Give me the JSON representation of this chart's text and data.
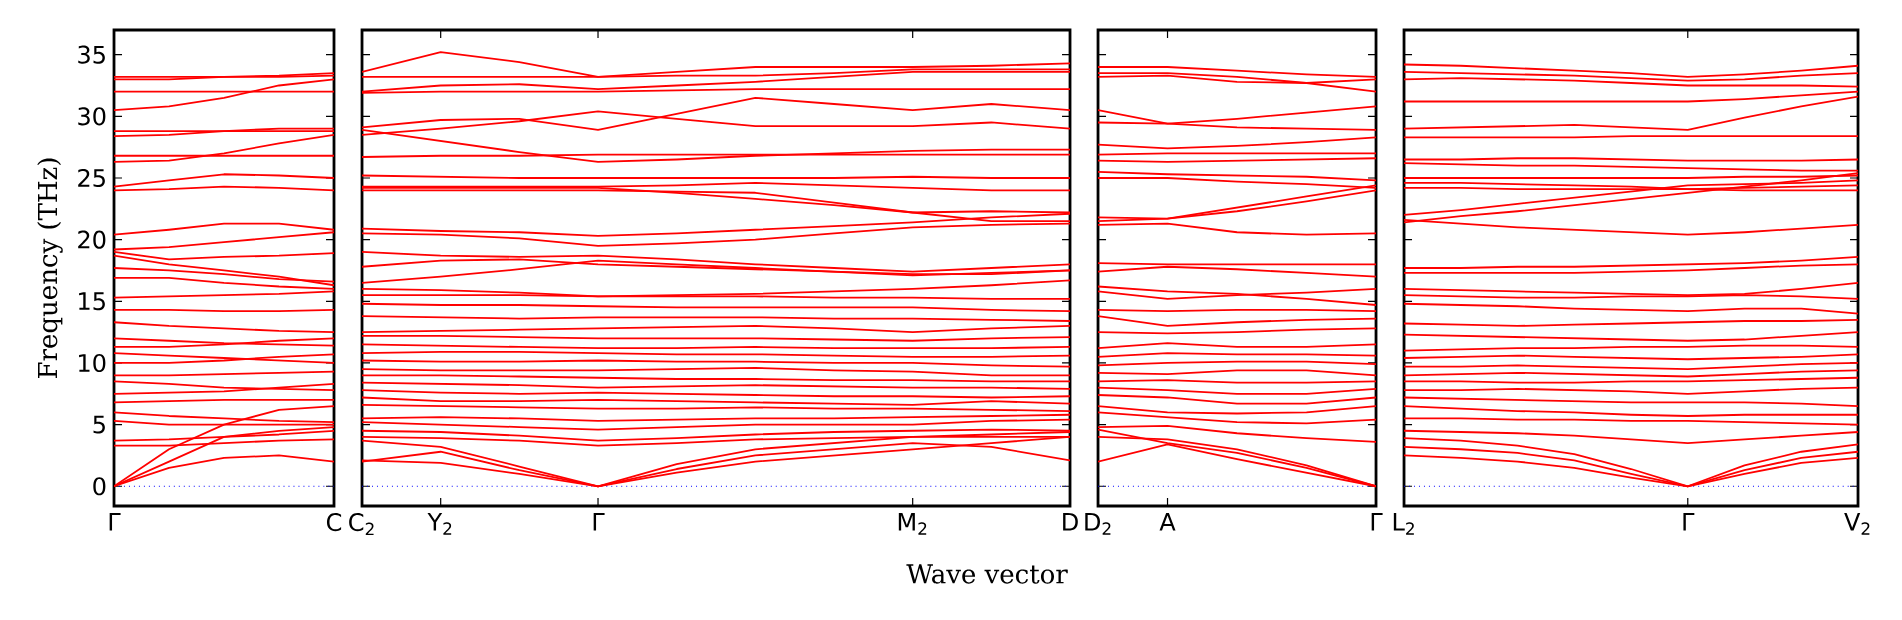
{
  "chart_data": [
    {
      "type": "line",
      "ylabel": "Frequency (THz)",
      "ylim": [
        -1.6,
        37
      ],
      "yticks": [
        0,
        5,
        10,
        15,
        20,
        25,
        30,
        35
      ],
      "categories": [
        "Γ",
        null,
        null,
        null,
        "C"
      ],
      "ref_lines": [
        {
          "axis": "y",
          "value": 0,
          "color": "#0000ff",
          "line_style": "dotted"
        }
      ],
      "series": [
        {
          "color": "#ff0000",
          "values": [
            0,
            1.5,
            2.3,
            2.5,
            2.0
          ]
        },
        {
          "color": "#ff0000",
          "values": [
            0,
            2.0,
            4.0,
            4.5,
            4.8
          ]
        },
        {
          "color": "#ff0000",
          "values": [
            0,
            3.0,
            5.0,
            6.2,
            6.5
          ]
        },
        {
          "color": "#ff0000",
          "values": [
            3.3,
            3.3,
            3.5,
            3.7,
            3.8
          ]
        },
        {
          "color": "#ff0000",
          "values": [
            3.7,
            3.8,
            4.0,
            4.2,
            4.5
          ]
        },
        {
          "color": "#ff0000",
          "values": [
            5.3,
            5.0,
            5.0,
            5.0,
            5.0
          ]
        },
        {
          "color": "#ff0000",
          "values": [
            6.0,
            5.7,
            5.5,
            5.3,
            5.2
          ]
        },
        {
          "color": "#ff0000",
          "values": [
            6.8,
            6.9,
            7.0,
            7.0,
            7.0
          ]
        },
        {
          "color": "#ff0000",
          "values": [
            7.5,
            7.6,
            7.7,
            8.0,
            8.3
          ]
        },
        {
          "color": "#ff0000",
          "values": [
            8.5,
            8.3,
            8.0,
            7.9,
            7.8
          ]
        },
        {
          "color": "#ff0000",
          "values": [
            9.0,
            9.0,
            9.1,
            9.2,
            9.3
          ]
        },
        {
          "color": "#ff0000",
          "values": [
            10.0,
            10.0,
            10.2,
            10.5,
            10.7
          ]
        },
        {
          "color": "#ff0000",
          "values": [
            10.8,
            10.6,
            10.4,
            10.2,
            10.0
          ]
        },
        {
          "color": "#ff0000",
          "values": [
            11.3,
            11.3,
            11.5,
            11.8,
            12.0
          ]
        },
        {
          "color": "#ff0000",
          "values": [
            12.0,
            11.8,
            11.6,
            11.5,
            11.4
          ]
        },
        {
          "color": "#ff0000",
          "values": [
            13.3,
            13.0,
            12.8,
            12.6,
            12.5
          ]
        },
        {
          "color": "#ff0000",
          "values": [
            14.3,
            14.3,
            14.2,
            14.2,
            14.3
          ]
        },
        {
          "color": "#ff0000",
          "values": [
            15.3,
            15.4,
            15.5,
            15.6,
            15.8
          ]
        },
        {
          "color": "#ff0000",
          "values": [
            16.9,
            16.9,
            16.5,
            16.2,
            16.0
          ]
        },
        {
          "color": "#ff0000",
          "values": [
            17.7,
            17.5,
            17.2,
            16.8,
            16.6
          ]
        },
        {
          "color": "#ff0000",
          "values": [
            18.7,
            18.0,
            17.5,
            17.0,
            16.3
          ]
        },
        {
          "color": "#ff0000",
          "values": [
            19.0,
            18.4,
            18.6,
            18.7,
            18.9
          ]
        },
        {
          "color": "#ff0000",
          "values": [
            20.4,
            20.8,
            21.3,
            21.3,
            20.8
          ]
        },
        {
          "color": "#ff0000",
          "values": [
            19.2,
            19.4,
            19.8,
            20.2,
            20.6
          ]
        },
        {
          "color": "#ff0000",
          "values": [
            24.0,
            24.1,
            24.3,
            24.2,
            24.0
          ]
        },
        {
          "color": "#ff0000",
          "values": [
            24.3,
            24.8,
            25.3,
            25.2,
            25.0
          ]
        },
        {
          "color": "#ff0000",
          "values": [
            26.8,
            26.8,
            26.8,
            26.8,
            26.8
          ]
        },
        {
          "color": "#ff0000",
          "values": [
            26.3,
            26.4,
            27.0,
            27.8,
            28.5
          ]
        },
        {
          "color": "#ff0000",
          "values": [
            28.4,
            28.5,
            28.8,
            29.0,
            29.0
          ]
        },
        {
          "color": "#ff0000",
          "values": [
            28.8,
            28.8,
            28.8,
            28.8,
            28.8
          ]
        },
        {
          "color": "#ff0000",
          "values": [
            30.5,
            30.8,
            31.5,
            32.5,
            33.0
          ]
        },
        {
          "color": "#ff0000",
          "values": [
            32.0,
            32.0,
            32.0,
            32.0,
            32.0
          ]
        },
        {
          "color": "#ff0000",
          "values": [
            33.0,
            33.0,
            33.2,
            33.3,
            33.5
          ]
        },
        {
          "color": "#ff0000",
          "values": [
            33.2,
            33.2,
            33.2,
            33.2,
            33.3
          ]
        }
      ]
    },
    {
      "type": "line",
      "xlabel": "Wave vector",
      "tick_labels": "x",
      "ylim": [
        -1.6,
        37
      ],
      "yticks": [
        0,
        5,
        10,
        15,
        20,
        25,
        30,
        35
      ],
      "categories": [
        "C$_{2}$",
        "Y$_{2}$",
        null,
        "Γ",
        null,
        null,
        null,
        "M$_{2}$",
        null,
        "D"
      ],
      "ref_lines": [
        {
          "axis": "y",
          "value": 0,
          "color": "#0000ff",
          "line_style": "dotted"
        }
      ],
      "series": [
        {
          "color": "#ff0000",
          "values": [
            33.6,
            35.2,
            34.4,
            33.2,
            33.6,
            34.0,
            34.0,
            34.0,
            34.1,
            34.3
          ]
        },
        {
          "color": "#ff0000",
          "values": [
            33.2,
            33.2,
            33.2,
            33.2,
            33.3,
            33.3,
            33.5,
            33.8,
            33.8,
            33.8
          ]
        },
        {
          "color": "#ff0000",
          "values": [
            32.0,
            32.5,
            32.6,
            32.2,
            32.5,
            32.8,
            33.2,
            33.6,
            33.6,
            33.6
          ]
        },
        {
          "color": "#ff0000",
          "values": [
            31.9,
            32.0,
            32.0,
            32.0,
            32.1,
            32.2,
            32.2,
            32.2,
            32.2,
            32.2
          ]
        },
        {
          "color": "#ff0000",
          "values": [
            29.1,
            29.7,
            29.8,
            28.9,
            30.2,
            31.5,
            31.0,
            30.5,
            31.0,
            30.5
          ]
        },
        {
          "color": "#ff0000",
          "values": [
            28.5,
            29.0,
            29.6,
            30.4,
            29.8,
            29.2,
            29.2,
            29.2,
            29.5,
            29.0
          ]
        },
        {
          "color": "#ff0000",
          "values": [
            28.9,
            28.0,
            27.1,
            26.3,
            26.5,
            26.8,
            27.0,
            27.2,
            27.3,
            27.3
          ]
        },
        {
          "color": "#ff0000",
          "values": [
            26.7,
            26.8,
            26.8,
            26.9,
            26.9,
            26.9,
            26.9,
            26.9,
            26.9,
            26.9
          ]
        },
        {
          "color": "#ff0000",
          "values": [
            25.2,
            25.1,
            25.0,
            25.0,
            25.0,
            25.0,
            25.0,
            25.1,
            25.0,
            25.0
          ]
        },
        {
          "color": "#ff0000",
          "values": [
            24.3,
            24.3,
            24.3,
            24.3,
            24.4,
            24.6,
            24.4,
            24.2,
            24.0,
            24.0
          ]
        },
        {
          "color": "#ff0000",
          "values": [
            24.2,
            24.2,
            24.2,
            24.2,
            23.8,
            23.3,
            22.8,
            22.2,
            22.3,
            22.2
          ]
        },
        {
          "color": "#ff0000",
          "values": [
            24.0,
            24.0,
            24.0,
            24.0,
            23.9,
            23.8,
            23.0,
            22.2,
            21.5,
            21.5
          ]
        },
        {
          "color": "#ff0000",
          "values": [
            20.9,
            20.7,
            20.6,
            20.3,
            20.5,
            20.8,
            21.1,
            21.4,
            21.8,
            22.1
          ]
        },
        {
          "color": "#ff0000",
          "values": [
            20.5,
            20.4,
            20.1,
            19.5,
            19.7,
            20.0,
            20.5,
            21.0,
            21.2,
            21.3
          ]
        },
        {
          "color": "#ff0000",
          "values": [
            19.0,
            18.7,
            18.6,
            18.7,
            18.4,
            18.0,
            17.7,
            17.4,
            17.7,
            18.0
          ]
        },
        {
          "color": "#ff0000",
          "values": [
            17.8,
            18.3,
            18.4,
            18.0,
            17.8,
            17.6,
            17.4,
            17.2,
            17.2,
            17.5
          ]
        },
        {
          "color": "#ff0000",
          "values": [
            16.5,
            17.0,
            17.6,
            18.3,
            18.0,
            17.7,
            17.4,
            17.1,
            17.3,
            17.5
          ]
        },
        {
          "color": "#ff0000",
          "values": [
            16.0,
            15.9,
            15.7,
            15.4,
            15.5,
            15.6,
            15.8,
            16.0,
            16.3,
            16.7
          ]
        },
        {
          "color": "#ff0000",
          "values": [
            15.5,
            15.5,
            15.5,
            15.4,
            15.4,
            15.4,
            15.3,
            15.3,
            15.2,
            15.2
          ]
        },
        {
          "color": "#ff0000",
          "values": [
            14.8,
            14.7,
            14.7,
            14.6,
            14.5,
            14.5,
            14.5,
            14.5,
            14.3,
            14.2
          ]
        },
        {
          "color": "#ff0000",
          "values": [
            13.8,
            13.7,
            13.6,
            13.7,
            13.7,
            13.7,
            13.6,
            13.6,
            13.5,
            13.4
          ]
        },
        {
          "color": "#ff0000",
          "values": [
            12.5,
            12.6,
            12.7,
            12.8,
            12.9,
            13.0,
            12.8,
            12.5,
            12.8,
            13.0
          ]
        },
        {
          "color": "#ff0000",
          "values": [
            12.2,
            12.2,
            12.1,
            12.0,
            12.0,
            12.0,
            11.9,
            11.8,
            12.0,
            12.1
          ]
        },
        {
          "color": "#ff0000",
          "values": [
            11.5,
            11.4,
            11.3,
            11.2,
            11.2,
            11.3,
            11.2,
            11.2,
            11.2,
            11.3
          ]
        },
        {
          "color": "#ff0000",
          "values": [
            10.8,
            10.9,
            10.9,
            10.8,
            10.7,
            10.7,
            10.6,
            10.5,
            10.5,
            10.6
          ]
        },
        {
          "color": "#ff0000",
          "values": [
            10.2,
            10.1,
            10.1,
            10.2,
            10.1,
            10.1,
            10.0,
            10.0,
            9.8,
            9.7
          ]
        },
        {
          "color": "#ff0000",
          "values": [
            9.5,
            9.4,
            9.4,
            9.4,
            9.5,
            9.6,
            9.4,
            9.3,
            9.0,
            9.0
          ]
        },
        {
          "color": "#ff0000",
          "values": [
            9.0,
            9.0,
            8.9,
            8.8,
            8.7,
            8.7,
            8.6,
            8.6,
            8.5,
            8.5
          ]
        },
        {
          "color": "#ff0000",
          "values": [
            8.4,
            8.3,
            8.2,
            8.0,
            8.1,
            8.2,
            8.1,
            8.0,
            8.0,
            7.9
          ]
        },
        {
          "color": "#ff0000",
          "values": [
            7.8,
            7.6,
            7.5,
            7.6,
            7.5,
            7.4,
            7.3,
            7.3,
            7.2,
            7.3
          ]
        },
        {
          "color": "#ff0000",
          "values": [
            7.2,
            6.9,
            6.9,
            7.0,
            6.9,
            6.8,
            6.7,
            6.6,
            6.9,
            6.7
          ]
        },
        {
          "color": "#ff0000",
          "values": [
            6.6,
            6.5,
            6.4,
            6.3,
            6.3,
            6.4,
            6.3,
            6.3,
            6.2,
            6.1
          ]
        },
        {
          "color": "#ff0000",
          "values": [
            5.5,
            5.6,
            5.5,
            5.3,
            5.4,
            5.5,
            5.5,
            5.6,
            5.7,
            5.8
          ]
        },
        {
          "color": "#ff0000",
          "values": [
            5.2,
            5.0,
            4.8,
            4.6,
            4.8,
            5.0,
            5.0,
            5.0,
            5.3,
            5.4
          ]
        },
        {
          "color": "#ff0000",
          "values": [
            4.5,
            4.4,
            4.1,
            3.7,
            3.9,
            4.2,
            4.4,
            4.5,
            4.6,
            4.5
          ]
        },
        {
          "color": "#ff0000",
          "values": [
            4.0,
            3.9,
            3.7,
            3.3,
            3.5,
            3.8,
            3.9,
            4.0,
            4.0,
            4.0
          ]
        },
        {
          "color": "#ff0000",
          "values": [
            2.0,
            2.8,
            1.3,
            0,
            1.4,
            2.5,
            3.0,
            3.5,
            3.2,
            2.1
          ]
        },
        {
          "color": "#ff0000",
          "values": [
            2.1,
            1.9,
            1.0,
            0,
            1.1,
            2.0,
            2.5,
            3.0,
            3.5,
            4.0
          ]
        },
        {
          "color": "#ff0000",
          "values": [
            3.7,
            3.2,
            1.6,
            0,
            1.8,
            3.0,
            3.5,
            4.0,
            4.2,
            4.4
          ]
        }
      ]
    },
    {
      "type": "line",
      "tick_labels": "x",
      "ylim": [
        -1.6,
        37
      ],
      "yticks": [
        0,
        5,
        10,
        15,
        20,
        25,
        30,
        35
      ],
      "categories": [
        "D$_{2}$",
        "A",
        null,
        null,
        "Γ"
      ],
      "ref_lines": [
        {
          "axis": "y",
          "value": 0,
          "color": "#0000ff",
          "line_style": "dotted"
        }
      ],
      "series": [
        {
          "color": "#ff0000",
          "values": [
            34.0,
            34.0,
            33.7,
            33.4,
            33.2
          ]
        },
        {
          "color": "#ff0000",
          "values": [
            33.5,
            33.5,
            33.2,
            32.7,
            32.0
          ]
        },
        {
          "color": "#ff0000",
          "values": [
            33.2,
            33.3,
            32.8,
            32.7,
            33.0
          ]
        },
        {
          "color": "#ff0000",
          "values": [
            30.5,
            29.4,
            29.8,
            30.3,
            30.8
          ]
        },
        {
          "color": "#ff0000",
          "values": [
            29.5,
            29.4,
            29.1,
            29.0,
            28.9
          ]
        },
        {
          "color": "#ff0000",
          "values": [
            27.7,
            27.4,
            27.6,
            27.9,
            28.3
          ]
        },
        {
          "color": "#ff0000",
          "values": [
            26.9,
            27.0,
            27.0,
            27.0,
            27.0
          ]
        },
        {
          "color": "#ff0000",
          "values": [
            26.4,
            26.3,
            26.4,
            26.5,
            26.6
          ]
        },
        {
          "color": "#ff0000",
          "values": [
            25.5,
            25.3,
            25.2,
            25.1,
            24.8
          ]
        },
        {
          "color": "#ff0000",
          "values": [
            25.0,
            25.0,
            24.7,
            24.5,
            24.2
          ]
        },
        {
          "color": "#ff0000",
          "values": [
            21.8,
            21.7,
            22.6,
            23.5,
            24.4
          ]
        },
        {
          "color": "#ff0000",
          "values": [
            21.5,
            21.7,
            22.3,
            23.1,
            24.0
          ]
        },
        {
          "color": "#ff0000",
          "values": [
            21.2,
            21.3,
            20.6,
            20.4,
            20.5
          ]
        },
        {
          "color": "#ff0000",
          "values": [
            18.1,
            18.0,
            18.0,
            18.0,
            18.0
          ]
        },
        {
          "color": "#ff0000",
          "values": [
            17.4,
            17.8,
            17.6,
            17.3,
            17.0
          ]
        },
        {
          "color": "#ff0000",
          "values": [
            16.2,
            15.8,
            15.6,
            15.2,
            14.7
          ]
        },
        {
          "color": "#ff0000",
          "values": [
            15.8,
            15.2,
            15.5,
            15.7,
            16.0
          ]
        },
        {
          "color": "#ff0000",
          "values": [
            14.3,
            14.2,
            14.3,
            14.3,
            14.2
          ]
        },
        {
          "color": "#ff0000",
          "values": [
            13.8,
            13.0,
            13.3,
            13.5,
            13.6
          ]
        },
        {
          "color": "#ff0000",
          "values": [
            12.5,
            12.4,
            12.5,
            12.7,
            12.8
          ]
        },
        {
          "color": "#ff0000",
          "values": [
            11.2,
            11.6,
            11.3,
            11.3,
            11.5
          ]
        },
        {
          "color": "#ff0000",
          "values": [
            10.5,
            10.8,
            10.7,
            10.7,
            10.6
          ]
        },
        {
          "color": "#ff0000",
          "values": [
            9.8,
            10.0,
            10.1,
            10.1,
            9.9
          ]
        },
        {
          "color": "#ff0000",
          "values": [
            9.2,
            9.1,
            9.4,
            9.4,
            9.0
          ]
        },
        {
          "color": "#ff0000",
          "values": [
            8.5,
            8.6,
            8.4,
            8.4,
            8.5
          ]
        },
        {
          "color": "#ff0000",
          "values": [
            8.0,
            7.8,
            7.5,
            7.5,
            7.9
          ]
        },
        {
          "color": "#ff0000",
          "values": [
            7.4,
            7.2,
            6.7,
            6.7,
            7.2
          ]
        },
        {
          "color": "#ff0000",
          "values": [
            6.5,
            6.0,
            5.9,
            6.0,
            6.5
          ]
        },
        {
          "color": "#ff0000",
          "values": [
            6.0,
            5.6,
            5.2,
            5.1,
            5.4
          ]
        },
        {
          "color": "#ff0000",
          "values": [
            4.8,
            4.9,
            4.3,
            3.9,
            3.6
          ]
        },
        {
          "color": "#ff0000",
          "values": [
            4.6,
            3.5,
            2.7,
            1.5,
            0
          ]
        },
        {
          "color": "#ff0000",
          "values": [
            4.0,
            3.8,
            3.0,
            1.7,
            0
          ]
        },
        {
          "color": "#ff0000",
          "values": [
            2.0,
            3.4,
            2.2,
            1.1,
            0
          ]
        }
      ]
    },
    {
      "type": "line",
      "tick_labels": "x",
      "ylim": [
        -1.6,
        37
      ],
      "yticks": [
        0,
        5,
        10,
        15,
        20,
        25,
        30,
        35
      ],
      "categories": [
        "L$_{2}$",
        null,
        null,
        null,
        null,
        "Γ",
        null,
        null,
        "V$_{2}$"
      ],
      "ref_lines": [
        {
          "axis": "y",
          "value": 0,
          "color": "#0000ff",
          "line_style": "dotted"
        }
      ],
      "series": [
        {
          "color": "#ff0000",
          "values": [
            34.2,
            34.1,
            33.9,
            33.7,
            33.5,
            33.2,
            33.4,
            33.7,
            34.1
          ]
        },
        {
          "color": "#ff0000",
          "values": [
            33.6,
            33.5,
            33.4,
            33.3,
            33.1,
            32.9,
            33.0,
            33.3,
            33.5
          ]
        },
        {
          "color": "#ff0000",
          "values": [
            33.0,
            33.1,
            33.0,
            32.9,
            32.7,
            32.5,
            32.5,
            32.5,
            32.4
          ]
        },
        {
          "color": "#ff0000",
          "values": [
            31.2,
            31.2,
            31.2,
            31.2,
            31.2,
            31.2,
            31.4,
            31.7,
            32.0
          ]
        },
        {
          "color": "#ff0000",
          "values": [
            29.0,
            29.1,
            29.2,
            29.3,
            29.1,
            28.9,
            29.9,
            30.8,
            31.6
          ]
        },
        {
          "color": "#ff0000",
          "values": [
            28.3,
            28.3,
            28.3,
            28.3,
            28.4,
            28.4,
            28.4,
            28.4,
            28.4
          ]
        },
        {
          "color": "#ff0000",
          "values": [
            26.5,
            26.5,
            26.6,
            26.6,
            26.5,
            26.4,
            26.4,
            26.4,
            26.5
          ]
        },
        {
          "color": "#ff0000",
          "values": [
            26.2,
            26.1,
            26.0,
            26.0,
            25.9,
            25.8,
            25.7,
            25.6,
            25.6
          ]
        },
        {
          "color": "#ff0000",
          "values": [
            25.0,
            25.0,
            25.0,
            25.0,
            25.0,
            25.0,
            25.1,
            25.1,
            25.2
          ]
        },
        {
          "color": "#ff0000",
          "values": [
            24.6,
            24.6,
            24.5,
            24.4,
            24.3,
            24.1,
            24.2,
            24.3,
            24.4
          ]
        },
        {
          "color": "#ff0000",
          "values": [
            24.2,
            24.2,
            24.1,
            24.1,
            24.1,
            24.1,
            24.0,
            24.0,
            24.0
          ]
        },
        {
          "color": "#ff0000",
          "values": [
            22.0,
            22.4,
            22.9,
            23.4,
            23.9,
            24.4,
            24.5,
            24.6,
            24.8
          ]
        },
        {
          "color": "#ff0000",
          "values": [
            21.4,
            21.9,
            22.3,
            22.8,
            23.3,
            23.8,
            24.3,
            24.8,
            25.4
          ]
        },
        {
          "color": "#ff0000",
          "values": [
            21.6,
            21.3,
            21.0,
            20.8,
            20.6,
            20.4,
            20.6,
            20.9,
            21.2
          ]
        },
        {
          "color": "#ff0000",
          "values": [
            17.7,
            17.7,
            17.8,
            17.8,
            17.9,
            18.0,
            18.1,
            18.3,
            18.6
          ]
        },
        {
          "color": "#ff0000",
          "values": [
            17.3,
            17.3,
            17.3,
            17.3,
            17.4,
            17.5,
            17.7,
            17.9,
            18.0
          ]
        },
        {
          "color": "#ff0000",
          "values": [
            16.0,
            15.9,
            15.8,
            15.7,
            15.6,
            15.5,
            15.6,
            16.0,
            16.5
          ]
        },
        {
          "color": "#ff0000",
          "values": [
            15.5,
            15.4,
            15.3,
            15.3,
            15.4,
            15.4,
            15.5,
            15.4,
            15.2
          ]
        },
        {
          "color": "#ff0000",
          "values": [
            14.8,
            14.7,
            14.6,
            14.4,
            14.3,
            14.2,
            14.4,
            14.4,
            14.0
          ]
        },
        {
          "color": "#ff0000",
          "values": [
            13.2,
            13.1,
            13.0,
            13.1,
            13.2,
            13.3,
            13.4,
            13.4,
            13.5
          ]
        },
        {
          "color": "#ff0000",
          "values": [
            12.3,
            12.2,
            12.1,
            12.0,
            11.9,
            11.8,
            11.9,
            12.2,
            12.5
          ]
        },
        {
          "color": "#ff0000",
          "values": [
            11.0,
            11.1,
            11.2,
            11.2,
            11.3,
            11.3,
            11.4,
            11.4,
            11.3
          ]
        },
        {
          "color": "#ff0000",
          "values": [
            10.4,
            10.5,
            10.6,
            10.5,
            10.4,
            10.3,
            10.4,
            10.5,
            10.7
          ]
        },
        {
          "color": "#ff0000",
          "values": [
            9.7,
            9.7,
            9.8,
            9.7,
            9.6,
            9.5,
            9.7,
            9.9,
            10.0
          ]
        },
        {
          "color": "#ff0000",
          "values": [
            9.0,
            9.1,
            9.2,
            9.1,
            9.0,
            8.9,
            9.1,
            9.3,
            9.4
          ]
        },
        {
          "color": "#ff0000",
          "values": [
            8.5,
            8.5,
            8.4,
            8.4,
            8.5,
            8.5,
            8.6,
            8.7,
            8.8
          ]
        },
        {
          "color": "#ff0000",
          "values": [
            7.8,
            7.8,
            7.9,
            7.8,
            7.7,
            7.5,
            7.7,
            7.9,
            8.0
          ]
        },
        {
          "color": "#ff0000",
          "values": [
            7.2,
            7.1,
            7.0,
            6.9,
            6.8,
            6.8,
            6.8,
            6.7,
            6.5
          ]
        },
        {
          "color": "#ff0000",
          "values": [
            6.5,
            6.3,
            6.1,
            6.0,
            5.8,
            5.7,
            5.8,
            5.8,
            5.8
          ]
        },
        {
          "color": "#ff0000",
          "values": [
            5.5,
            5.5,
            5.4,
            5.4,
            5.3,
            5.3,
            5.2,
            5.1,
            5.0
          ]
        },
        {
          "color": "#ff0000",
          "values": [
            4.5,
            4.4,
            4.3,
            4.1,
            3.8,
            3.5,
            3.8,
            4.1,
            4.4
          ]
        },
        {
          "color": "#ff0000",
          "values": [
            3.9,
            3.7,
            3.3,
            2.6,
            1.4,
            0,
            1.7,
            2.8,
            3.4
          ]
        },
        {
          "color": "#ff0000",
          "values": [
            3.2,
            3.0,
            2.7,
            2.1,
            1.0,
            0,
            1.3,
            2.3,
            2.8
          ]
        },
        {
          "color": "#ff0000",
          "values": [
            2.5,
            2.3,
            2.0,
            1.5,
            0.7,
            0,
            1.0,
            1.9,
            2.3
          ]
        }
      ]
    }
  ]
}
